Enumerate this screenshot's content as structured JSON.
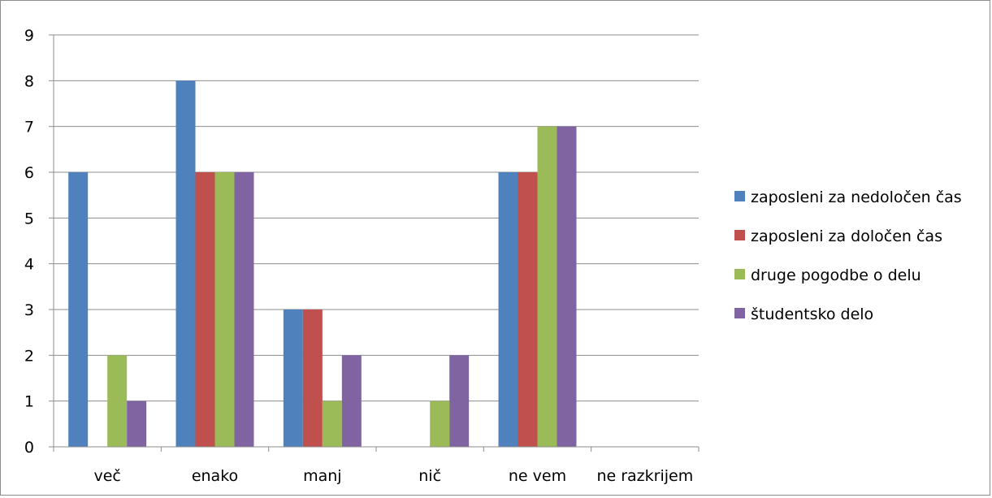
{
  "chart_data": {
    "type": "bar",
    "categories": [
      "več",
      "enako",
      "manj",
      "nič",
      "ne vem",
      "ne razkrijem"
    ],
    "series": [
      {
        "name": "zaposleni za nedoločen čas",
        "color": "#4f81bd",
        "values": [
          6,
          8,
          3,
          0,
          6,
          0
        ]
      },
      {
        "name": "zaposleni za določen čas",
        "color": "#c0504d",
        "values": [
          0,
          6,
          3,
          0,
          6,
          0
        ]
      },
      {
        "name": "druge pogodbe o delu",
        "color": "#9bbb59",
        "values": [
          2,
          6,
          1,
          1,
          7,
          0
        ]
      },
      {
        "name": "študentsko delo",
        "color": "#8064a2",
        "values": [
          1,
          6,
          2,
          2,
          7,
          0
        ]
      }
    ],
    "ylim": [
      0,
      9
    ],
    "yticks": [
      0,
      1,
      2,
      3,
      4,
      5,
      6,
      7,
      8,
      9
    ],
    "grid": true,
    "legend_position": "right"
  }
}
